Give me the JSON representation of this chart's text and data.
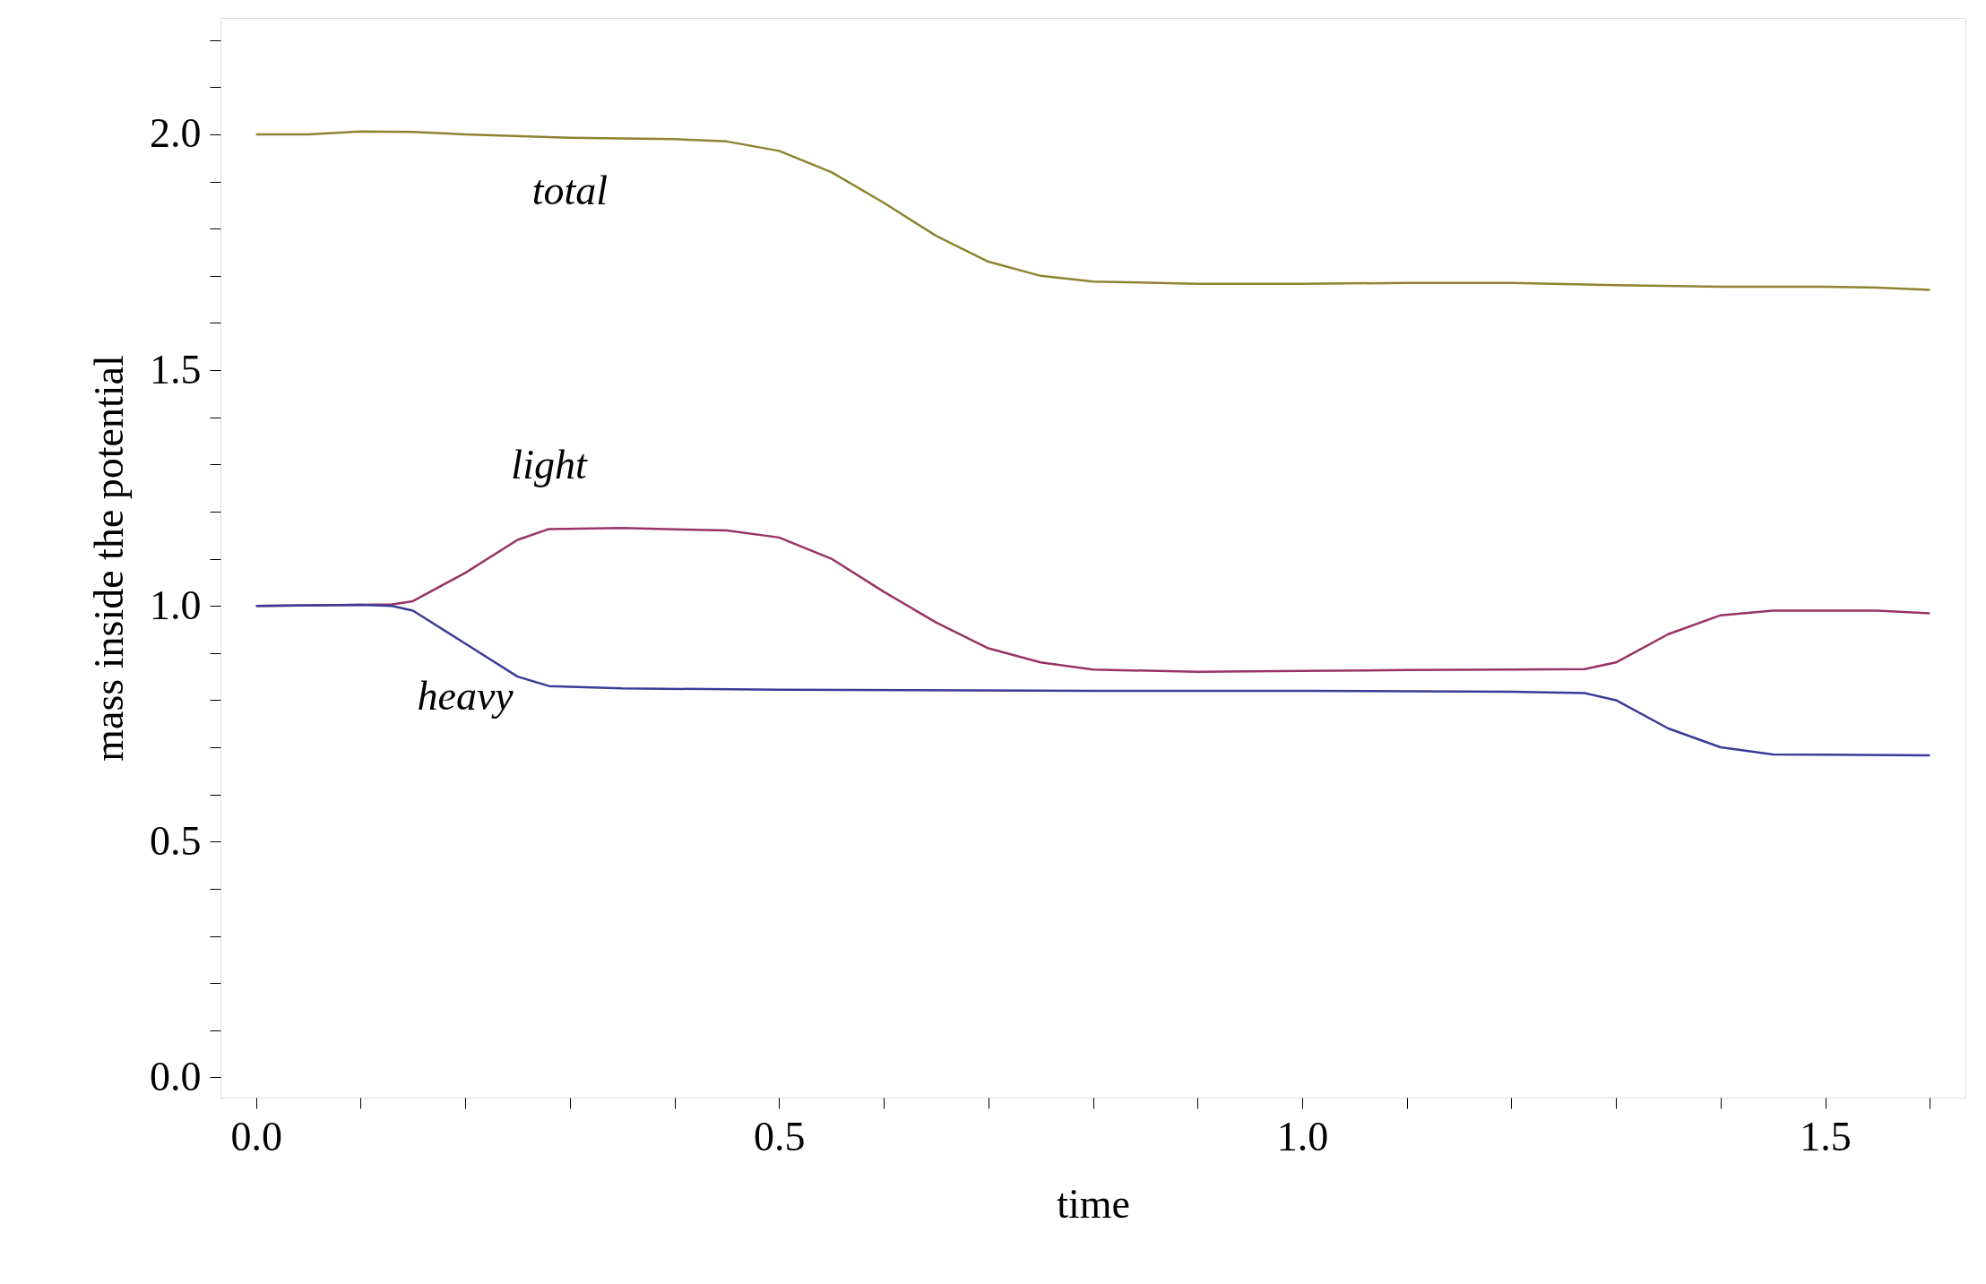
{
  "chart_data": {
    "type": "line",
    "xlabel": "time",
    "ylabel": "mass inside the potential",
    "xlim": [
      -0.034,
      1.634
    ],
    "ylim": [
      -0.043,
      2.247
    ],
    "xticks": [
      {
        "value": 0,
        "label": "0.0"
      },
      {
        "value": 0.1,
        "label": null
      },
      {
        "value": 0.2,
        "label": null
      },
      {
        "value": 0.3,
        "label": null
      },
      {
        "value": 0.4,
        "label": null
      },
      {
        "value": 0.5,
        "label": "0.5"
      },
      {
        "value": 0.6,
        "label": null
      },
      {
        "value": 0.7,
        "label": null
      },
      {
        "value": 0.8,
        "label": null
      },
      {
        "value": 0.9,
        "label": null
      },
      {
        "value": 1,
        "label": "1.0"
      },
      {
        "value": 1.1,
        "label": null
      },
      {
        "value": 1.2,
        "label": null
      },
      {
        "value": 1.3,
        "label": null
      },
      {
        "value": 1.4,
        "label": null
      },
      {
        "value": 1.5,
        "label": "1.5"
      },
      {
        "value": 1.6,
        "label": null
      }
    ],
    "yticks": [
      {
        "value": 0,
        "label": "0.0"
      },
      {
        "value": 0.1,
        "label": null
      },
      {
        "value": 0.2,
        "label": null
      },
      {
        "value": 0.3,
        "label": null
      },
      {
        "value": 0.4,
        "label": null
      },
      {
        "value": 0.5,
        "label": "0.5"
      },
      {
        "value": 0.6,
        "label": null
      },
      {
        "value": 0.7,
        "label": null
      },
      {
        "value": 0.8,
        "label": null
      },
      {
        "value": 0.9,
        "label": null
      },
      {
        "value": 1,
        "label": "1.0"
      },
      {
        "value": 1.1,
        "label": null
      },
      {
        "value": 1.2,
        "label": null
      },
      {
        "value": 1.3,
        "label": null
      },
      {
        "value": 1.4,
        "label": null
      },
      {
        "value": 1.5,
        "label": "1.5"
      },
      {
        "value": 1.6,
        "label": null
      },
      {
        "value": 1.7,
        "label": null
      },
      {
        "value": 1.8,
        "label": null
      },
      {
        "value": 1.9,
        "label": null
      },
      {
        "value": 2,
        "label": "2.0"
      },
      {
        "value": 2.1,
        "label": null
      },
      {
        "value": 2.2,
        "label": null
      }
    ],
    "grid": false,
    "marker": "none",
    "line_style": "solid",
    "series": [
      {
        "name": "total",
        "color": "#8c8431",
        "x": [
          0,
          0.05,
          0.1,
          0.15,
          0.2,
          0.3,
          0.4,
          0.45,
          0.5,
          0.55,
          0.6,
          0.65,
          0.7,
          0.75,
          0.8,
          0.9,
          1.0,
          1.1,
          1.2,
          1.3,
          1.4,
          1.5,
          1.55,
          1.6
        ],
        "values": [
          2.0,
          2.0,
          2.006,
          2.005,
          2.0,
          1.993,
          1.99,
          1.985,
          1.965,
          1.92,
          1.855,
          1.785,
          1.73,
          1.7,
          1.688,
          1.683,
          1.683,
          1.685,
          1.685,
          1.68,
          1.677,
          1.677,
          1.675,
          1.67
        ]
      },
      {
        "name": "light",
        "color": "#993366",
        "x": [
          0,
          0.1,
          0.13,
          0.15,
          0.2,
          0.25,
          0.28,
          0.35,
          0.45,
          0.5,
          0.55,
          0.6,
          0.65,
          0.7,
          0.75,
          0.8,
          0.9,
          1.0,
          1.1,
          1.2,
          1.27,
          1.3,
          1.35,
          1.4,
          1.45,
          1.5,
          1.55,
          1.6
        ],
        "values": [
          1.0,
          1.002,
          1.003,
          1.01,
          1.07,
          1.14,
          1.163,
          1.165,
          1.16,
          1.145,
          1.1,
          1.03,
          0.965,
          0.91,
          0.88,
          0.865,
          0.86,
          0.862,
          0.864,
          0.865,
          0.866,
          0.88,
          0.94,
          0.98,
          0.99,
          0.99,
          0.99,
          0.984
        ]
      },
      {
        "name": "heavy",
        "color": "#3b3b99",
        "x": [
          0,
          0.1,
          0.13,
          0.15,
          0.2,
          0.25,
          0.28,
          0.35,
          0.5,
          0.8,
          1.0,
          1.2,
          1.27,
          1.3,
          1.35,
          1.4,
          1.45,
          1.6
        ],
        "values": [
          1.0,
          1.002,
          1.0,
          0.99,
          0.92,
          0.85,
          0.83,
          0.825,
          0.822,
          0.82,
          0.82,
          0.818,
          0.815,
          0.8,
          0.74,
          0.7,
          0.685,
          0.683
        ]
      }
    ]
  }
}
